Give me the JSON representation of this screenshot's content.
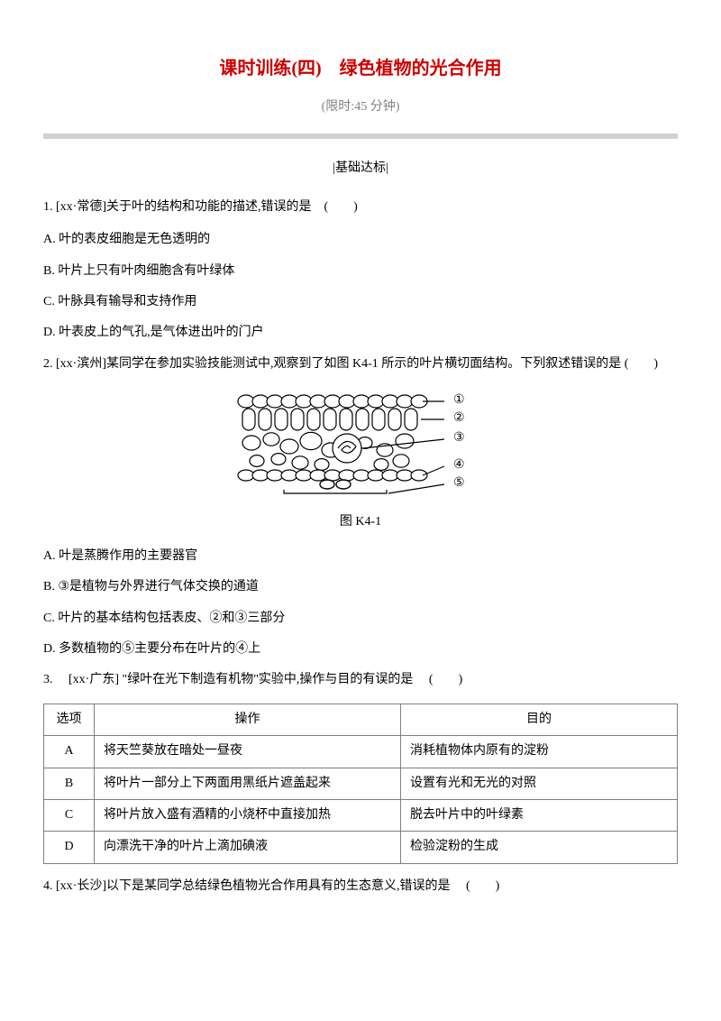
{
  "colors": {
    "title_color": "#cc0000",
    "subtitle_color": "#808080",
    "hr_color": "#d0d0d0",
    "text_color": "#000000",
    "table_border": "#808080"
  },
  "header": {
    "title": "课时训练(四)　绿色植物的光合作用",
    "subtitle": "(限时:45 分钟)",
    "section_label": "|基础达标|"
  },
  "q1": {
    "stem": "1. [xx·常德]关于叶的结构和功能的描述,错误的是　(　　)",
    "opts": {
      "A": "A. 叶的表皮细胞是无色透明的",
      "B": "B. 叶片上只有叶肉细胞含有叶绿体",
      "C": "C. 叶脉具有输导和支持作用",
      "D": "D. 叶表皮上的气孔,是气体进出叶的门户"
    }
  },
  "q2": {
    "stem": "2. [xx·滨州]某同学在参加实验技能测试中,观察到了如图 K4-1 所示的叶片横切面结构。下列叙述错误的是 (　　)",
    "figcap": "图 K4-1",
    "diagram": {
      "labels": [
        "①",
        "②",
        "③",
        "④",
        "⑤"
      ],
      "stroke": "#000000",
      "fill": "#ffffff"
    },
    "opts": {
      "A": "A. 叶是蒸腾作用的主要器官",
      "B": "B. ③是植物与外界进行气体交换的通道",
      "C": "C. 叶片的基本结构包括表皮、②和③三部分",
      "D": "D. 多数植物的⑤主要分布在叶片的④上"
    }
  },
  "q3": {
    "stem": "3. 　[xx·广东] \"绿叶在光下制造有机物\"实验中,操作与目的有误的是　 (　　)",
    "table": {
      "headers": [
        "选项",
        "操作",
        "目的"
      ],
      "rows": [
        [
          "A",
          "将天竺葵放在暗处一昼夜",
          "消耗植物体内原有的淀粉"
        ],
        [
          "B",
          "将叶片一部分上下两面用黑纸片遮盖起来",
          "设置有光和无光的对照"
        ],
        [
          "C",
          "将叶片放入盛有酒精的小烧杯中直接加热",
          "脱去叶片中的叶绿素"
        ],
        [
          "D",
          "向漂洗干净的叶片上滴加碘液",
          "检验淀粉的生成"
        ]
      ]
    }
  },
  "q4": {
    "stem": "4. [xx·长沙]以下是某同学总结绿色植物光合作用具有的生态意义,错误的是　 (　　)"
  }
}
